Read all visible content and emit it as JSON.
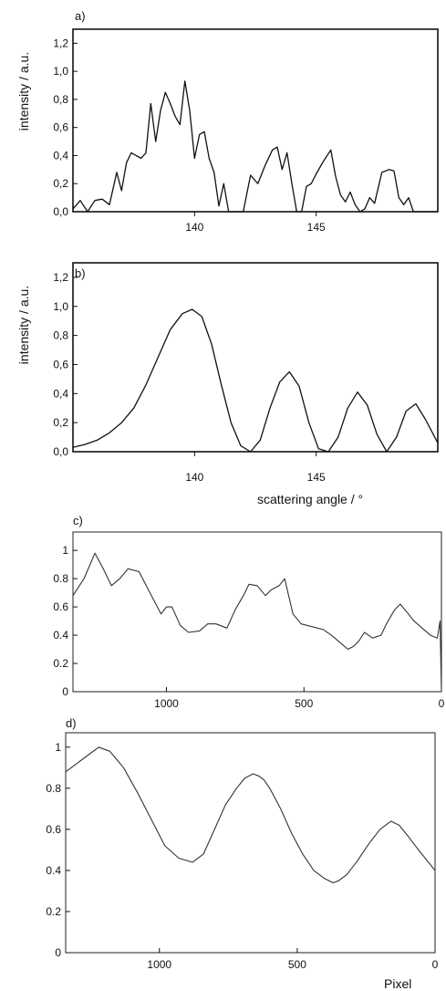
{
  "figure": {
    "panels": [
      {
        "label": "a)"
      },
      {
        "label": "b)"
      },
      {
        "label": "c)"
      },
      {
        "label": "d)"
      }
    ]
  },
  "chart_data": [
    {
      "type": "line",
      "panel": "a)",
      "title": "",
      "xlabel": "",
      "ylabel": "intensity / a.u.",
      "xlim": [
        135,
        150
      ],
      "ylim": [
        0,
        1.3
      ],
      "xticks": [
        140,
        145
      ],
      "xtick_labels": [
        "140",
        "145"
      ],
      "yticks": [
        0,
        0.2,
        0.4,
        0.6,
        0.8,
        1.0,
        1.2
      ],
      "ytick_labels": [
        "0,0",
        "0,2",
        "0,4",
        "0,6",
        "0,8",
        "1,0",
        "1,2"
      ],
      "series": [
        {
          "x": [
            135.0,
            135.3,
            135.6,
            135.9,
            136.2,
            136.5,
            136.8,
            137.0,
            137.2,
            137.4,
            137.6,
            137.8,
            138.0,
            138.2,
            138.4,
            138.6,
            138.8,
            139.0,
            139.2,
            139.4,
            139.6,
            139.8,
            140.0,
            140.2,
            140.4,
            140.6,
            140.8,
            141.0,
            141.2,
            141.4,
            141.6,
            141.8,
            142.0,
            142.3,
            142.6,
            142.9,
            143.2,
            143.4,
            143.6,
            143.8,
            144.0,
            144.2,
            144.4,
            144.6,
            144.8,
            145.0,
            145.3,
            145.6,
            145.8,
            146.0,
            146.2,
            146.4,
            146.6,
            146.8,
            147.0,
            147.2,
            147.4,
            147.7,
            148.0,
            148.2,
            148.4,
            148.6,
            148.8,
            149.0,
            149.2,
            149.4,
            149.7,
            150.0
          ],
          "y": [
            0.02,
            0.08,
            0.0,
            0.08,
            0.09,
            0.05,
            0.28,
            0.15,
            0.35,
            0.42,
            0.4,
            0.38,
            0.42,
            0.77,
            0.5,
            0.72,
            0.85,
            0.77,
            0.68,
            0.62,
            0.93,
            0.72,
            0.38,
            0.55,
            0.57,
            0.38,
            0.28,
            0.04,
            0.2,
            0.0,
            0.0,
            0.0,
            0.0,
            0.26,
            0.2,
            0.33,
            0.44,
            0.46,
            0.3,
            0.42,
            0.2,
            0.0,
            0.0,
            0.18,
            0.2,
            0.27,
            0.36,
            0.44,
            0.25,
            0.12,
            0.07,
            0.14,
            0.05,
            0.0,
            0.02,
            0.1,
            0.06,
            0.28,
            0.3,
            0.29,
            0.1,
            0.05,
            0.1,
            0.0,
            0.0,
            0.0,
            0.0,
            0.0
          ]
        }
      ]
    },
    {
      "type": "line",
      "panel": "b)",
      "title": "",
      "xlabel": "scattering angle / °",
      "ylabel": "intensity / a.u.",
      "xlim": [
        135,
        150
      ],
      "ylim": [
        0,
        1.3
      ],
      "xticks": [
        140,
        145
      ],
      "xtick_labels": [
        "140",
        "145"
      ],
      "yticks": [
        0,
        0.2,
        0.4,
        0.6,
        0.8,
        1.0,
        1.2
      ],
      "ytick_labels": [
        "0,0",
        "0,2",
        "0,4",
        "0,6",
        "0,8",
        "1,0",
        "1,2"
      ],
      "series": [
        {
          "x": [
            135.0,
            135.5,
            136.0,
            136.5,
            137.0,
            137.5,
            138.0,
            138.5,
            139.0,
            139.5,
            139.9,
            140.3,
            140.7,
            141.1,
            141.5,
            141.9,
            142.3,
            142.7,
            143.1,
            143.5,
            143.9,
            144.3,
            144.7,
            145.1,
            145.5,
            145.9,
            146.3,
            146.7,
            147.1,
            147.5,
            147.9,
            148.3,
            148.7,
            149.1,
            149.5,
            150.0
          ],
          "y": [
            0.03,
            0.05,
            0.08,
            0.13,
            0.2,
            0.3,
            0.46,
            0.65,
            0.84,
            0.95,
            0.98,
            0.93,
            0.74,
            0.46,
            0.2,
            0.04,
            0.0,
            0.08,
            0.3,
            0.48,
            0.55,
            0.45,
            0.2,
            0.02,
            0.0,
            0.1,
            0.3,
            0.41,
            0.32,
            0.12,
            0.0,
            0.1,
            0.28,
            0.33,
            0.22,
            0.06
          ]
        }
      ]
    },
    {
      "type": "line",
      "panel": "c)",
      "title": "",
      "xlabel": "",
      "ylabel": "",
      "x_reversed": true,
      "xlim": [
        1340,
        0
      ],
      "ylim": [
        0,
        1.13
      ],
      "xticks": [
        1000,
        500,
        0
      ],
      "xtick_labels": [
        "1000",
        "500",
        "0"
      ],
      "yticks": [
        0,
        0.2,
        0.4,
        0.6,
        0.8,
        1
      ],
      "ytick_labels": [
        "0",
        "0.2",
        "0.4",
        "0.6",
        "0.8",
        "1"
      ],
      "series": [
        {
          "x": [
            1340,
            1300,
            1260,
            1230,
            1200,
            1170,
            1140,
            1100,
            1060,
            1020,
            1000,
            980,
            950,
            920,
            880,
            850,
            820,
            780,
            750,
            720,
            700,
            670,
            640,
            620,
            590,
            570,
            540,
            510,
            470,
            430,
            400,
            370,
            340,
            320,
            300,
            280,
            250,
            220,
            200,
            170,
            150,
            120,
            100,
            70,
            40,
            15,
            5,
            0
          ],
          "y": [
            0.68,
            0.8,
            0.98,
            0.87,
            0.75,
            0.8,
            0.87,
            0.85,
            0.7,
            0.55,
            0.6,
            0.6,
            0.47,
            0.42,
            0.43,
            0.48,
            0.48,
            0.45,
            0.58,
            0.68,
            0.76,
            0.75,
            0.68,
            0.72,
            0.75,
            0.8,
            0.55,
            0.48,
            0.46,
            0.44,
            0.4,
            0.35,
            0.3,
            0.32,
            0.36,
            0.42,
            0.38,
            0.4,
            0.48,
            0.58,
            0.62,
            0.55,
            0.5,
            0.45,
            0.4,
            0.38,
            0.5,
            0.0
          ]
        }
      ]
    },
    {
      "type": "line",
      "panel": "d)",
      "title": "",
      "xlabel": "Pixel",
      "ylabel": "",
      "x_reversed": true,
      "xlim": [
        1340,
        0
      ],
      "ylim": [
        0,
        1.07
      ],
      "xticks": [
        1000,
        500,
        0
      ],
      "xtick_labels": [
        "1000",
        "500",
        "0"
      ],
      "yticks": [
        0,
        0.2,
        0.4,
        0.6,
        0.8,
        1
      ],
      "ytick_labels": [
        "0",
        "0.2",
        "0.4",
        "0.6",
        "0.8",
        "1"
      ],
      "series": [
        {
          "x": [
            1340,
            1300,
            1250,
            1220,
            1180,
            1130,
            1080,
            1030,
            980,
            930,
            880,
            840,
            800,
            760,
            720,
            690,
            660,
            640,
            620,
            600,
            560,
            520,
            480,
            440,
            400,
            370,
            350,
            320,
            280,
            240,
            200,
            160,
            130,
            100,
            60,
            30,
            0
          ],
          "y": [
            0.88,
            0.92,
            0.97,
            1.0,
            0.98,
            0.9,
            0.78,
            0.65,
            0.52,
            0.46,
            0.44,
            0.48,
            0.6,
            0.72,
            0.8,
            0.85,
            0.87,
            0.86,
            0.84,
            0.8,
            0.7,
            0.58,
            0.48,
            0.4,
            0.36,
            0.34,
            0.35,
            0.38,
            0.45,
            0.53,
            0.6,
            0.64,
            0.62,
            0.57,
            0.5,
            0.45,
            0.4
          ]
        }
      ]
    }
  ]
}
